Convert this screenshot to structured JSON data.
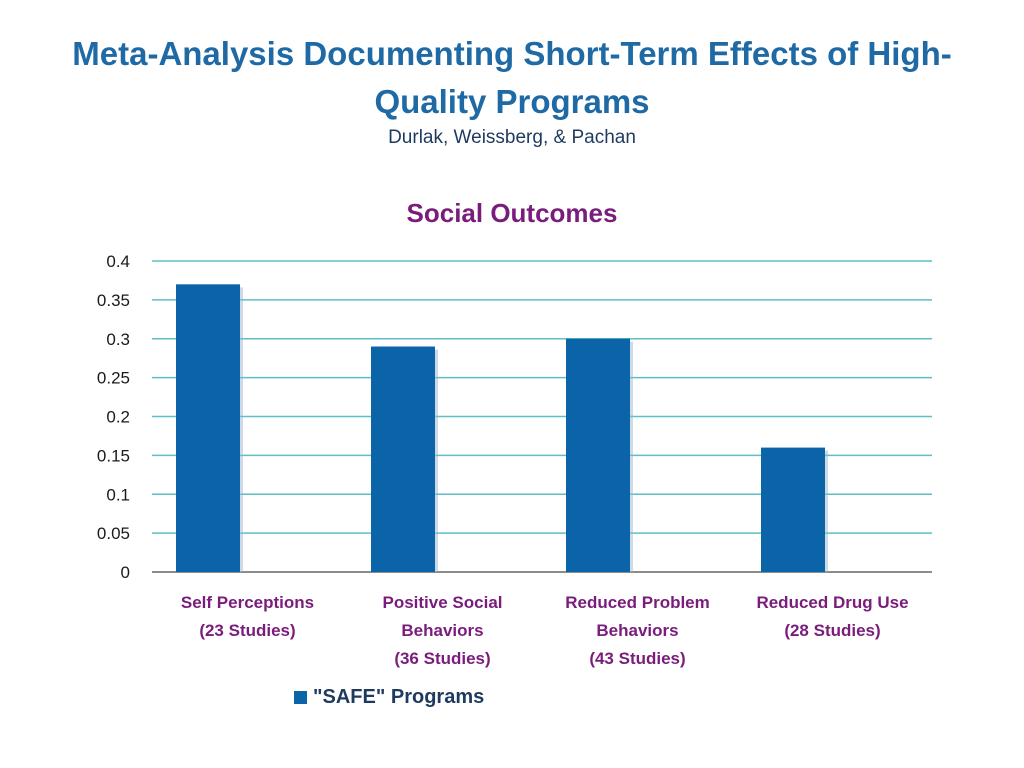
{
  "slide": {
    "title": "Meta-Analysis Documenting Short-Term Effects of High-Quality Programs",
    "subtitle": "Durlak, Weissberg, & Pachan"
  },
  "chart_data": {
    "type": "bar",
    "title": "Social Outcomes",
    "categories": [
      [
        "Self Perceptions",
        "(23 Studies)"
      ],
      [
        "Positive Social",
        "Behaviors",
        "(36 Studies)"
      ],
      [
        "Reduced Problem",
        "Behaviors",
        "(43 Studies)"
      ],
      [
        "Reduced Drug Use",
        "(28 Studies)"
      ]
    ],
    "series": [
      {
        "name": "\"SAFE\" Programs",
        "values": [
          0.37,
          0.29,
          0.3,
          0.16
        ]
      }
    ],
    "ylim": [
      0,
      0.4
    ],
    "yticks": [
      "0",
      "0.05",
      "0.1",
      "0.15",
      "0.2",
      "0.25",
      "0.3",
      "0.35",
      "0.4"
    ],
    "grid": true,
    "legend_position": "bottom-left",
    "colors": {
      "bar": "#0b63a8",
      "grid": "#5bbfc4",
      "axis": "#8c8c8c"
    }
  }
}
